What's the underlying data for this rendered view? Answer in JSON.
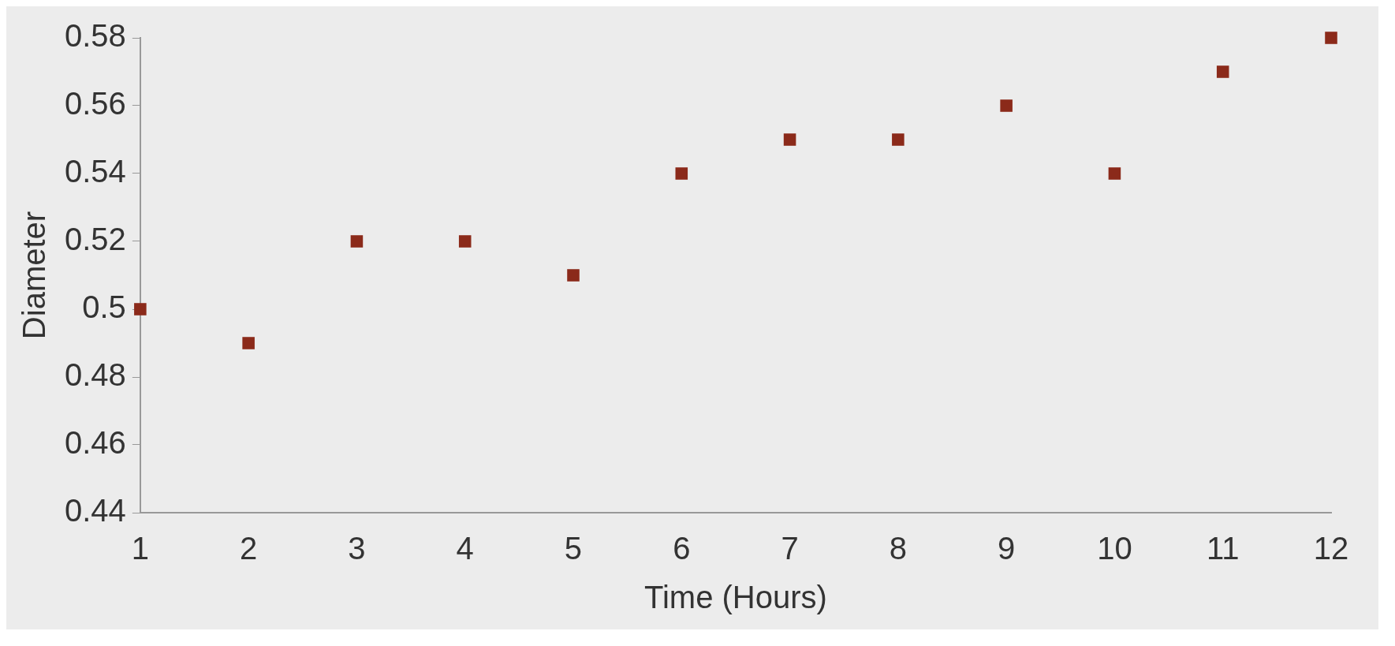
{
  "chart_data": {
    "type": "scatter",
    "xlabel": "Time (Hours)",
    "ylabel": "Diameter",
    "x": [
      1,
      2,
      3,
      4,
      5,
      6,
      7,
      8,
      9,
      10,
      11,
      12
    ],
    "values": [
      0.5,
      0.49,
      0.52,
      0.52,
      0.51,
      0.54,
      0.55,
      0.55,
      0.56,
      0.54,
      0.57,
      0.58
    ],
    "color": "#8b2a1a",
    "marker": "square",
    "xlim": [
      1,
      12
    ],
    "xticks": [
      1,
      2,
      3,
      4,
      5,
      6,
      7,
      8,
      9,
      10,
      11,
      12
    ],
    "ylim": [
      0.44,
      0.58
    ],
    "yticks": [
      0.44,
      0.46,
      0.48,
      0.5,
      0.52,
      0.54,
      0.56,
      0.58
    ]
  }
}
